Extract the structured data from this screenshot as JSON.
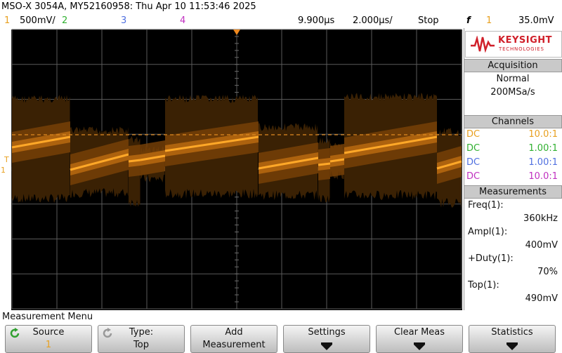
{
  "header": {
    "title": "MSO-X 3054A, MY52160958: Thu Apr 10 11:53:46 2025"
  },
  "status_bar": {
    "channels": [
      {
        "label": "1",
        "scale": "500mV/",
        "color": "#e8a020"
      },
      {
        "label": "2",
        "color": "#30b030"
      },
      {
        "label": "3",
        "color": "#5070e0"
      },
      {
        "label": "4",
        "color": "#c030c0"
      }
    ],
    "delay": "9.900µs",
    "timebase": "2.000µs/",
    "run_state": "Stop",
    "trigger": {
      "symbol": "f",
      "source": "1",
      "level": "35.0mV"
    }
  },
  "screen_markers": {
    "trigger": "T",
    "ground": "1"
  },
  "brand": {
    "name": "KEYSIGHT",
    "subtitle": "TECHNOLOGIES"
  },
  "acquisition": {
    "title": "Acquisition",
    "mode": "Normal",
    "rate": "200MSa/s"
  },
  "channels_panel": {
    "title": "Channels",
    "rows": [
      {
        "coupling": "DC",
        "probe": "10.0:1",
        "color": "#e8a020"
      },
      {
        "coupling": "DC",
        "probe": "1.00:1",
        "color": "#30b030"
      },
      {
        "coupling": "DC",
        "probe": "1.00:1",
        "color": "#5070e0"
      },
      {
        "coupling": "DC",
        "probe": "10.0:1",
        "color": "#c030c0"
      }
    ]
  },
  "measurements": {
    "title": "Measurements",
    "items": [
      {
        "label": "Freq(1):",
        "value": "360kHz"
      },
      {
        "label": "Ampl(1):",
        "value": "400mV"
      },
      {
        "label": "+Duty(1):",
        "value": "70%"
      },
      {
        "label": "Top(1):",
        "value": "490mV"
      }
    ]
  },
  "menu": {
    "title": "Measurement Menu",
    "softkeys": [
      {
        "line1": "Source",
        "line2": "1"
      },
      {
        "line1": "Type:",
        "line2": "Top"
      },
      {
        "line1": "Add",
        "line2": "Measurement"
      },
      {
        "line1": "Settings"
      },
      {
        "line1": "Clear Meas"
      },
      {
        "line1": "Statistics"
      }
    ]
  }
}
